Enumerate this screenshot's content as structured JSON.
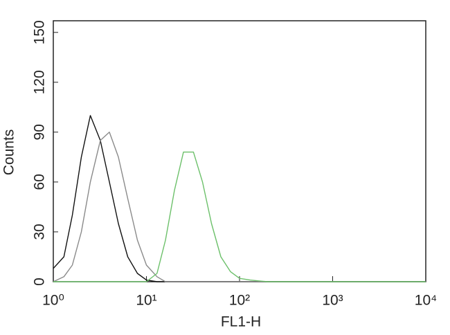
{
  "chart_data": {
    "type": "line",
    "xlabel": "FL1-H",
    "ylabel": "Counts",
    "xscale": "log",
    "x": [
      1,
      1.3,
      1.6,
      2,
      2.5,
      3.2,
      4,
      5,
      6.3,
      8,
      10,
      13,
      16,
      20,
      25,
      32,
      40,
      50,
      63,
      80,
      100,
      130,
      160,
      200,
      250,
      320,
      1000,
      10000
    ],
    "series": [
      {
        "color": "#111111",
        "values": [
          8,
          15,
          40,
          75,
          100,
          85,
          60,
          35,
          15,
          5,
          1,
          0,
          0,
          0,
          0,
          0,
          0,
          0,
          0,
          0,
          0,
          0,
          0,
          0,
          0,
          0,
          0,
          0
        ]
      },
      {
        "color": "#8a8a8a",
        "values": [
          0,
          3,
          10,
          30,
          60,
          85,
          90,
          75,
          50,
          25,
          10,
          3,
          0,
          0,
          0,
          0,
          0,
          0,
          0,
          0,
          0,
          0,
          0,
          0,
          0,
          0,
          0,
          0
        ]
      },
      {
        "color": "#6cc06a",
        "values": [
          0,
          0,
          0,
          0,
          0,
          0,
          0,
          0,
          0,
          0,
          0,
          5,
          25,
          55,
          78,
          78,
          60,
          35,
          15,
          6,
          2,
          1,
          0.5,
          0,
          0,
          0,
          0,
          0
        ]
      }
    ],
    "xlim": [
      1,
      10000
    ],
    "xticks": [
      {
        "value": 1,
        "label": "10⁰"
      },
      {
        "value": 10,
        "label": "10¹"
      },
      {
        "value": 100,
        "label": "10²"
      },
      {
        "value": 1000,
        "label": "10³"
      },
      {
        "value": 10000,
        "label": "10⁴"
      }
    ],
    "ylim": [
      0,
      157
    ],
    "yticks": [
      0,
      30,
      60,
      90,
      120,
      150
    ]
  }
}
